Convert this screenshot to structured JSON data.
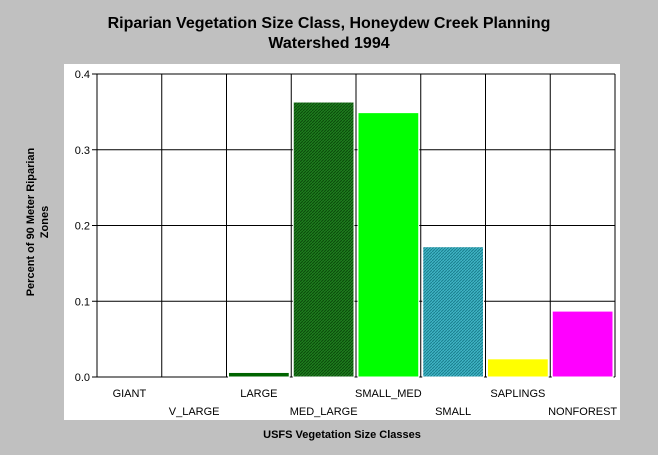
{
  "chart_data": {
    "type": "bar",
    "title_line1": "Riparian Vegetation Size Class, Honeydew Creek Planning",
    "title_line2": "Watershed 1994",
    "xlabel": "USFS Vegetation Size Classes",
    "ylabel_line1": "Percent of 90 Meter Riparian",
    "ylabel_line2": "Zones",
    "ylim": [
      0,
      0.4
    ],
    "yticks": [
      "0.0",
      "0.1",
      "0.2",
      "0.3",
      "0.4"
    ],
    "grid": true,
    "categories": [
      "GIANT",
      "V_LARGE",
      "LARGE",
      "MED_LARGE",
      "SMALL_MED",
      "SMALL",
      "SAPLINGS",
      "NONFOREST"
    ],
    "values": [
      0.0,
      0.0,
      0.006,
      0.363,
      0.349,
      0.172,
      0.024,
      0.087
    ],
    "colors": [
      "#006400",
      "#006400",
      "#006400",
      "#1e7d1e",
      "#00ff00",
      "#2aa7b8",
      "#ffff00",
      "#ff00ff"
    ],
    "patterns": [
      "solid",
      "solid",
      "solid",
      "hatch-dark",
      "solid",
      "hatch-teal",
      "solid",
      "solid"
    ]
  }
}
